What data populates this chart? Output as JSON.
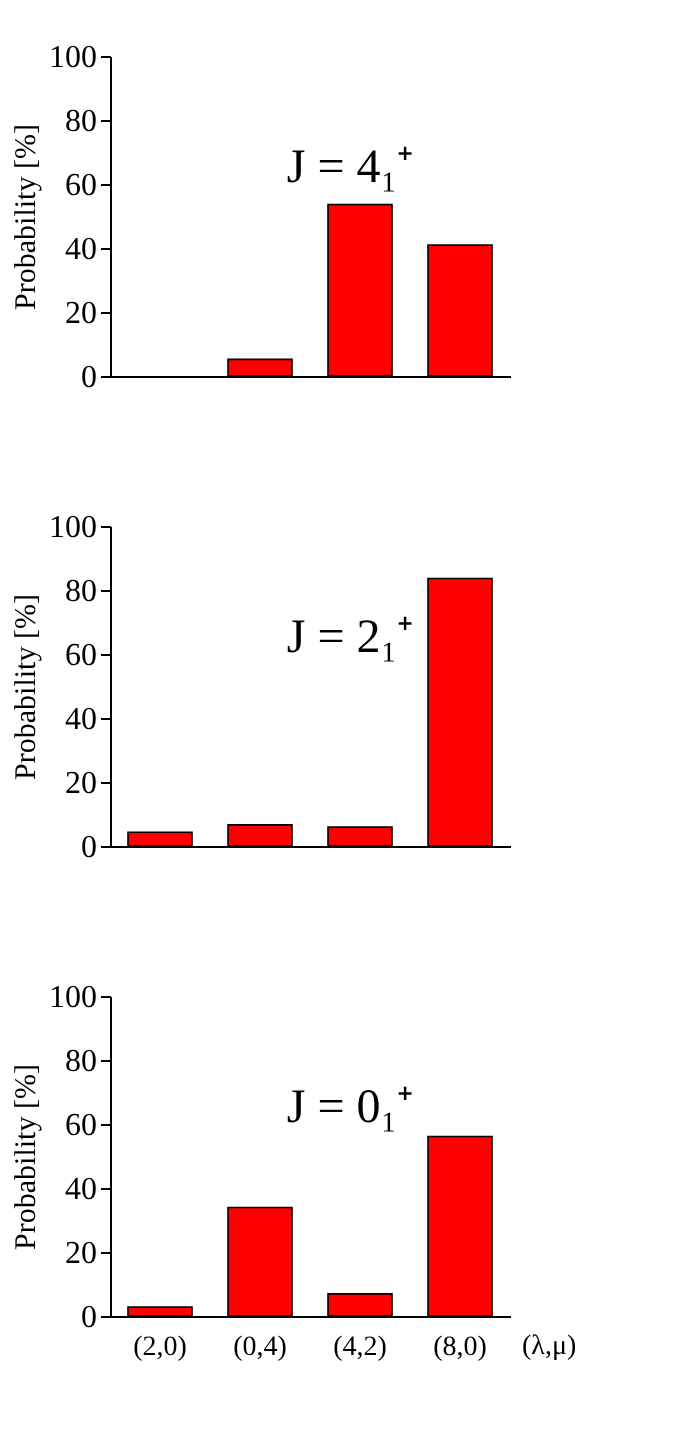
{
  "chart_data": [
    {
      "type": "bar",
      "categories": [
        null,
        null,
        null,
        null
      ],
      "values": [
        null,
        5.2,
        53.6,
        40.9
      ],
      "color": "#ff0000",
      "ylabel": "Probability [%]",
      "ylim": [
        0,
        100
      ],
      "yticks": [
        0,
        20,
        40,
        60,
        80,
        100
      ],
      "annotations": [
        "J = 4₁⁺"
      ]
    },
    {
      "type": "bar",
      "categories": [
        null,
        null,
        null,
        null
      ],
      "values": [
        4.3,
        6.6,
        5.9,
        83.6
      ],
      "color": "#ff0000",
      "ylabel": "Probability [%]",
      "ylim": [
        0,
        100
      ],
      "yticks": [
        0,
        20,
        40,
        60,
        80,
        100
      ],
      "annotations": [
        "J = 2₁⁺"
      ]
    },
    {
      "type": "bar",
      "categories": [
        "(2,0)",
        "(0,4)",
        "(4,2)",
        "(8,0)"
      ],
      "values": [
        2.8,
        33.9,
        6.9,
        56.1
      ],
      "color": "#ff0000",
      "ylabel": "Probability [%]",
      "xlabel": "(λ,μ)",
      "ylim": [
        0,
        100
      ],
      "yticks": [
        0,
        20,
        40,
        60,
        80,
        100
      ],
      "annotations": [
        "J = 0₁⁺"
      ]
    }
  ]
}
